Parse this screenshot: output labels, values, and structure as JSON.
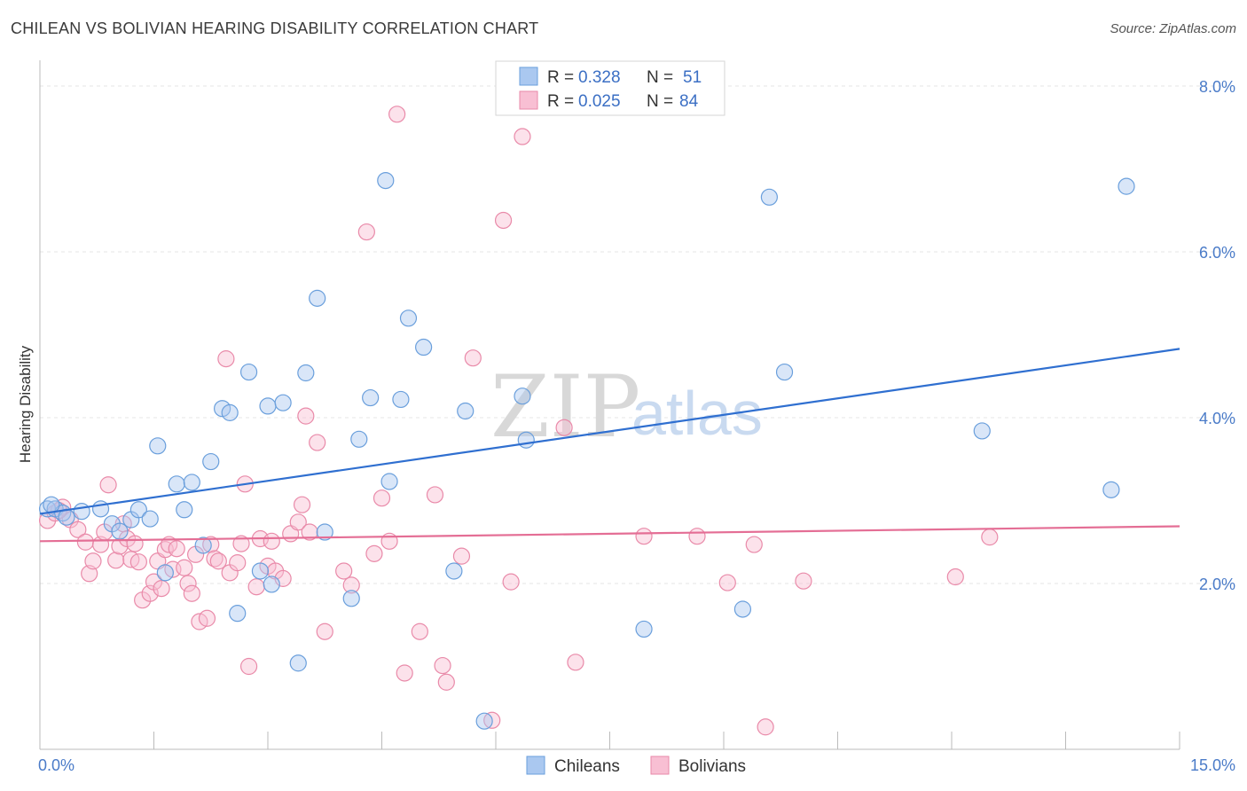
{
  "header": {
    "title": "CHILEAN VS BOLIVIAN HEARING DISABILITY CORRELATION CHART",
    "source": "Source: ZipAtlas.com"
  },
  "watermark": {
    "part1": "ZIP",
    "part2": "atlas"
  },
  "legend": {
    "rows": [
      {
        "r_label": "R =",
        "r_value": "0.328",
        "n_label": "N =",
        "n_value": "51",
        "color": "#aac8f0",
        "stroke": "#6a9fdc"
      },
      {
        "r_label": "R =",
        "r_value": "0.025",
        "n_label": "N =",
        "n_value": "84",
        "color": "#f8bfd3",
        "stroke": "#e98aa9"
      }
    ]
  },
  "bottom_legend": [
    {
      "label": "Chileans",
      "color": "#aac8f0",
      "stroke": "#6a9fdc"
    },
    {
      "label": "Bolivians",
      "color": "#f8bfd3",
      "stroke": "#e98aa9"
    }
  ],
  "chart_data": {
    "type": "scatter",
    "xlabel": "",
    "ylabel": "Hearing Disability",
    "xlim": [
      0,
      15
    ],
    "ylim": [
      0,
      8
    ],
    "x_tick_labels": [
      {
        "value": 0,
        "label": "0.0%"
      },
      {
        "value": 15,
        "label": "15.0%"
      }
    ],
    "y_tick_labels": [
      {
        "value": 2,
        "label": "2.0%"
      },
      {
        "value": 4,
        "label": "4.0%"
      },
      {
        "value": 6,
        "label": "6.0%"
      },
      {
        "value": 8,
        "label": "8.0%"
      }
    ],
    "grid": true,
    "legend_position": "top-center",
    "series": [
      {
        "name": "Chileans",
        "color": "#6a9fdc",
        "fill": "#aac8f0",
        "trend": {
          "x": [
            0,
            15
          ],
          "y": [
            2.84,
            4.83
          ],
          "color": "#2f6fd0"
        },
        "points": [
          [
            0.1,
            2.9
          ],
          [
            0.2,
            2.9
          ],
          [
            0.3,
            2.85
          ],
          [
            0.55,
            2.87
          ],
          [
            0.8,
            2.9
          ],
          [
            0.95,
            2.72
          ],
          [
            1.05,
            2.63
          ],
          [
            1.2,
            2.77
          ],
          [
            1.3,
            2.89
          ],
          [
            1.45,
            2.78
          ],
          [
            1.55,
            3.66
          ],
          [
            1.65,
            2.13
          ],
          [
            1.8,
            3.2
          ],
          [
            1.9,
            2.89
          ],
          [
            2.0,
            3.22
          ],
          [
            2.15,
            2.46
          ],
          [
            2.25,
            3.47
          ],
          [
            2.4,
            4.11
          ],
          [
            2.5,
            4.06
          ],
          [
            2.6,
            1.64
          ],
          [
            2.75,
            4.55
          ],
          [
            2.9,
            2.15
          ],
          [
            3.0,
            4.14
          ],
          [
            3.05,
            1.99
          ],
          [
            3.2,
            4.18
          ],
          [
            3.4,
            1.04
          ],
          [
            3.5,
            4.54
          ],
          [
            3.65,
            5.44
          ],
          [
            3.75,
            2.62
          ],
          [
            4.1,
            1.82
          ],
          [
            4.2,
            3.74
          ],
          [
            4.35,
            4.24
          ],
          [
            4.55,
            6.86
          ],
          [
            4.6,
            3.23
          ],
          [
            4.75,
            4.22
          ],
          [
            4.85,
            5.2
          ],
          [
            5.05,
            4.85
          ],
          [
            5.45,
            2.15
          ],
          [
            5.6,
            4.08
          ],
          [
            5.85,
            0.34
          ],
          [
            6.35,
            4.26
          ],
          [
            6.4,
            3.73
          ],
          [
            7.95,
            1.45
          ],
          [
            9.25,
            1.69
          ],
          [
            9.6,
            6.66
          ],
          [
            9.8,
            4.55
          ],
          [
            12.4,
            3.84
          ],
          [
            14.1,
            3.13
          ],
          [
            14.3,
            6.79
          ],
          [
            0.15,
            2.95
          ],
          [
            0.35,
            2.8
          ]
        ]
      },
      {
        "name": "Bolivians",
        "color": "#e98aa9",
        "fill": "#f8bfd3",
        "trend": {
          "x": [
            0,
            15
          ],
          "y": [
            2.51,
            2.69
          ],
          "color": "#e46e95"
        },
        "points": [
          [
            0.1,
            2.76
          ],
          [
            0.2,
            2.85
          ],
          [
            0.3,
            2.92
          ],
          [
            0.4,
            2.77
          ],
          [
            0.5,
            2.65
          ],
          [
            0.6,
            2.5
          ],
          [
            0.65,
            2.12
          ],
          [
            0.7,
            2.27
          ],
          [
            0.8,
            2.47
          ],
          [
            0.85,
            2.62
          ],
          [
            0.9,
            3.19
          ],
          [
            1.0,
            2.28
          ],
          [
            1.05,
            2.45
          ],
          [
            1.1,
            2.72
          ],
          [
            1.15,
            2.54
          ],
          [
            1.2,
            2.29
          ],
          [
            1.25,
            2.48
          ],
          [
            1.3,
            2.26
          ],
          [
            1.35,
            1.8
          ],
          [
            1.45,
            1.88
          ],
          [
            1.5,
            2.02
          ],
          [
            1.55,
            2.27
          ],
          [
            1.6,
            1.94
          ],
          [
            1.65,
            2.41
          ],
          [
            1.7,
            2.47
          ],
          [
            1.75,
            2.17
          ],
          [
            1.8,
            2.42
          ],
          [
            1.9,
            2.19
          ],
          [
            1.95,
            2.0
          ],
          [
            2.0,
            1.88
          ],
          [
            2.05,
            2.35
          ],
          [
            2.1,
            1.54
          ],
          [
            2.2,
            1.58
          ],
          [
            2.25,
            2.47
          ],
          [
            2.3,
            2.3
          ],
          [
            2.35,
            2.27
          ],
          [
            2.45,
            4.71
          ],
          [
            2.5,
            2.13
          ],
          [
            2.6,
            2.25
          ],
          [
            2.65,
            2.48
          ],
          [
            2.7,
            3.2
          ],
          [
            2.75,
            1.0
          ],
          [
            2.85,
            1.96
          ],
          [
            2.9,
            2.54
          ],
          [
            3.0,
            2.21
          ],
          [
            3.05,
            2.51
          ],
          [
            3.1,
            2.15
          ],
          [
            3.2,
            2.06
          ],
          [
            3.3,
            2.6
          ],
          [
            3.4,
            2.74
          ],
          [
            3.45,
            2.95
          ],
          [
            3.5,
            4.02
          ],
          [
            3.55,
            2.62
          ],
          [
            3.65,
            3.7
          ],
          [
            3.75,
            1.42
          ],
          [
            4.0,
            2.15
          ],
          [
            4.1,
            1.98
          ],
          [
            4.3,
            6.24
          ],
          [
            4.4,
            2.36
          ],
          [
            4.5,
            3.03
          ],
          [
            4.6,
            2.51
          ],
          [
            4.7,
            7.66
          ],
          [
            4.8,
            0.92
          ],
          [
            5.0,
            1.42
          ],
          [
            5.2,
            3.07
          ],
          [
            5.3,
            1.01
          ],
          [
            5.35,
            0.81
          ],
          [
            5.55,
            2.33
          ],
          [
            5.7,
            4.72
          ],
          [
            5.95,
            0.35
          ],
          [
            6.1,
            6.38
          ],
          [
            6.2,
            2.02
          ],
          [
            6.35,
            7.39
          ],
          [
            6.9,
            3.88
          ],
          [
            7.05,
            1.05
          ],
          [
            7.95,
            2.57
          ],
          [
            8.65,
            2.57
          ],
          [
            9.05,
            2.01
          ],
          [
            9.4,
            2.47
          ],
          [
            9.55,
            0.27
          ],
          [
            10.05,
            2.03
          ],
          [
            12.05,
            2.08
          ],
          [
            12.5,
            2.56
          ],
          [
            0.25,
            2.88
          ]
        ]
      }
    ]
  }
}
